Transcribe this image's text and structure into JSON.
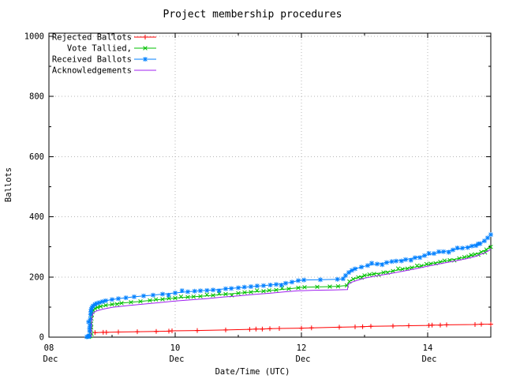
{
  "title": "Project membership procedures",
  "chart_data": {
    "type": "line",
    "title": "Project membership procedures",
    "xlabel": "Date/Time (UTC)",
    "ylabel": "Ballots",
    "x_unit_days_since": "08 Dec 00:00 UTC",
    "xlim": [
      0,
      7
    ],
    "ylim": [
      0,
      1000
    ],
    "grid": true,
    "legend_position": "top-left",
    "grid_color": "#b4b4b4",
    "border_color": "#000000",
    "x_major_ticks": [
      {
        "t": 0,
        "day": "08",
        "month": "Dec"
      },
      {
        "t": 2,
        "day": "10",
        "month": "Dec"
      },
      {
        "t": 4,
        "day": "12",
        "month": "Dec"
      },
      {
        "t": 6,
        "day": "14",
        "month": "Dec"
      }
    ],
    "x_minor_ticks": [
      1,
      3,
      5
    ],
    "y_major_ticks": [
      0,
      200,
      400,
      600,
      800,
      1000
    ],
    "y_minor_ticks": [
      100,
      300,
      500,
      700,
      900
    ],
    "series": [
      {
        "name": "Rejected Ballots",
        "color": "#ff0000",
        "marker": "plus",
        "points": [
          [
            0.73,
            15
          ],
          [
            0.86,
            16
          ],
          [
            0.91,
            16
          ],
          [
            1.1,
            17
          ],
          [
            1.4,
            18
          ],
          [
            1.7,
            19
          ],
          [
            1.9,
            20
          ],
          [
            1.95,
            21
          ],
          [
            2.35,
            22
          ],
          [
            2.8,
            24
          ],
          [
            3.18,
            26
          ],
          [
            3.28,
            27
          ],
          [
            3.38,
            27
          ],
          [
            3.5,
            28
          ],
          [
            3.65,
            29
          ],
          [
            4.0,
            30
          ],
          [
            4.16,
            31
          ],
          [
            4.6,
            33
          ],
          [
            4.85,
            34
          ],
          [
            4.97,
            35
          ],
          [
            5.1,
            36
          ],
          [
            5.45,
            37
          ],
          [
            5.7,
            38
          ],
          [
            6.02,
            39
          ],
          [
            6.07,
            40
          ],
          [
            6.2,
            40
          ],
          [
            6.3,
            41
          ],
          [
            6.75,
            42
          ],
          [
            6.85,
            43
          ],
          [
            7.0,
            43
          ]
        ]
      },
      {
        "name": "Vote Tallied,",
        "color": "#00c000",
        "marker": "cross",
        "points": [
          [
            0.63,
            1
          ],
          [
            0.65,
            3
          ],
          [
            0.66,
            5
          ],
          [
            0.665,
            25
          ],
          [
            0.67,
            45
          ],
          [
            0.675,
            62
          ],
          [
            0.68,
            75
          ],
          [
            0.69,
            84
          ],
          [
            0.7,
            90
          ],
          [
            0.73,
            95
          ],
          [
            0.77,
            99
          ],
          [
            0.82,
            102
          ],
          [
            0.9,
            106
          ],
          [
            1.0,
            109
          ],
          [
            1.15,
            113
          ],
          [
            1.3,
            116
          ],
          [
            1.45,
            119
          ],
          [
            1.6,
            122
          ],
          [
            1.8,
            126
          ],
          [
            2.0,
            130
          ],
          [
            2.2,
            133
          ],
          [
            2.4,
            136
          ],
          [
            2.6,
            139
          ],
          [
            2.8,
            143
          ],
          [
            3.0,
            146
          ],
          [
            3.2,
            150
          ],
          [
            3.4,
            153
          ],
          [
            3.6,
            157
          ],
          [
            3.8,
            161
          ],
          [
            3.95,
            164
          ],
          [
            4.05,
            166
          ],
          [
            4.25,
            167
          ],
          [
            4.45,
            168
          ],
          [
            4.58,
            169
          ],
          [
            4.72,
            172
          ],
          [
            4.76,
            185
          ],
          [
            4.82,
            193
          ],
          [
            4.9,
            199
          ],
          [
            5.0,
            205
          ],
          [
            5.15,
            210
          ],
          [
            5.3,
            215
          ],
          [
            5.45,
            220
          ],
          [
            5.6,
            226
          ],
          [
            5.75,
            231
          ],
          [
            5.9,
            237
          ],
          [
            6.05,
            244
          ],
          [
            6.2,
            250
          ],
          [
            6.35,
            256
          ],
          [
            6.5,
            262
          ],
          [
            6.65,
            268
          ],
          [
            6.75,
            275
          ],
          [
            6.85,
            283
          ],
          [
            6.93,
            291
          ],
          [
            7.0,
            300
          ]
        ]
      },
      {
        "name": "Received Ballots",
        "color": "#0080ff",
        "marker": "star",
        "points": [
          [
            0.6,
            1
          ],
          [
            0.62,
            2
          ],
          [
            0.63,
            3
          ],
          [
            0.64,
            5
          ],
          [
            0.645,
            20
          ],
          [
            0.65,
            40
          ],
          [
            0.655,
            60
          ],
          [
            0.66,
            75
          ],
          [
            0.665,
            85
          ],
          [
            0.67,
            92
          ],
          [
            0.68,
            98
          ],
          [
            0.7,
            104
          ],
          [
            0.73,
            109
          ],
          [
            0.76,
            112
          ],
          [
            0.8,
            115
          ],
          [
            0.85,
            118
          ],
          [
            0.9,
            121
          ],
          [
            1.0,
            125
          ],
          [
            1.1,
            128
          ],
          [
            1.22,
            131
          ],
          [
            1.35,
            134
          ],
          [
            1.5,
            137
          ],
          [
            1.65,
            140
          ],
          [
            1.8,
            143
          ],
          [
            2.0,
            147
          ],
          [
            2.2,
            151
          ],
          [
            2.4,
            154
          ],
          [
            2.6,
            157
          ],
          [
            2.8,
            161
          ],
          [
            3.0,
            164
          ],
          [
            3.2,
            168
          ],
          [
            3.4,
            171
          ],
          [
            3.6,
            175
          ],
          [
            3.75,
            179
          ],
          [
            3.85,
            183
          ],
          [
            3.95,
            188
          ],
          [
            4.04,
            190
          ],
          [
            4.3,
            191
          ],
          [
            4.57,
            192
          ],
          [
            4.66,
            194
          ],
          [
            4.7,
            205
          ],
          [
            4.75,
            215
          ],
          [
            4.8,
            222
          ],
          [
            4.85,
            227
          ],
          [
            4.95,
            233
          ],
          [
            5.05,
            238
          ],
          [
            5.2,
            243
          ],
          [
            5.35,
            248
          ],
          [
            5.5,
            253
          ],
          [
            5.65,
            258
          ],
          [
            5.8,
            264
          ],
          [
            5.95,
            271
          ],
          [
            6.1,
            278
          ],
          [
            6.25,
            284
          ],
          [
            6.4,
            290
          ],
          [
            6.55,
            296
          ],
          [
            6.7,
            303
          ],
          [
            6.8,
            310
          ],
          [
            6.9,
            320
          ],
          [
            6.95,
            330
          ],
          [
            7.0,
            341
          ]
        ]
      },
      {
        "name": "Acknowledgements",
        "color": "#a020f0",
        "marker": "none",
        "points": [
          [
            0.67,
            0
          ],
          [
            0.675,
            40
          ],
          [
            0.68,
            65
          ],
          [
            0.7,
            80
          ],
          [
            0.75,
            87
          ],
          [
            0.85,
            93
          ],
          [
            1.0,
            99
          ],
          [
            1.25,
            105
          ],
          [
            1.5,
            110
          ],
          [
            1.75,
            115
          ],
          [
            2.0,
            120
          ],
          [
            2.25,
            124
          ],
          [
            2.5,
            128
          ],
          [
            2.75,
            133
          ],
          [
            3.0,
            137
          ],
          [
            3.25,
            142
          ],
          [
            3.5,
            146
          ],
          [
            3.75,
            151
          ],
          [
            3.95,
            154
          ],
          [
            4.2,
            156
          ],
          [
            4.5,
            157
          ],
          [
            4.73,
            158
          ],
          [
            4.74,
            175
          ],
          [
            4.8,
            183
          ],
          [
            4.9,
            190
          ],
          [
            5.0,
            196
          ],
          [
            5.2,
            204
          ],
          [
            5.4,
            211
          ],
          [
            5.6,
            219
          ],
          [
            5.8,
            227
          ],
          [
            6.0,
            236
          ],
          [
            6.2,
            244
          ],
          [
            6.4,
            252
          ],
          [
            6.6,
            260
          ],
          [
            6.75,
            268
          ],
          [
            6.9,
            280
          ],
          [
            7.0,
            292
          ]
        ]
      }
    ]
  }
}
